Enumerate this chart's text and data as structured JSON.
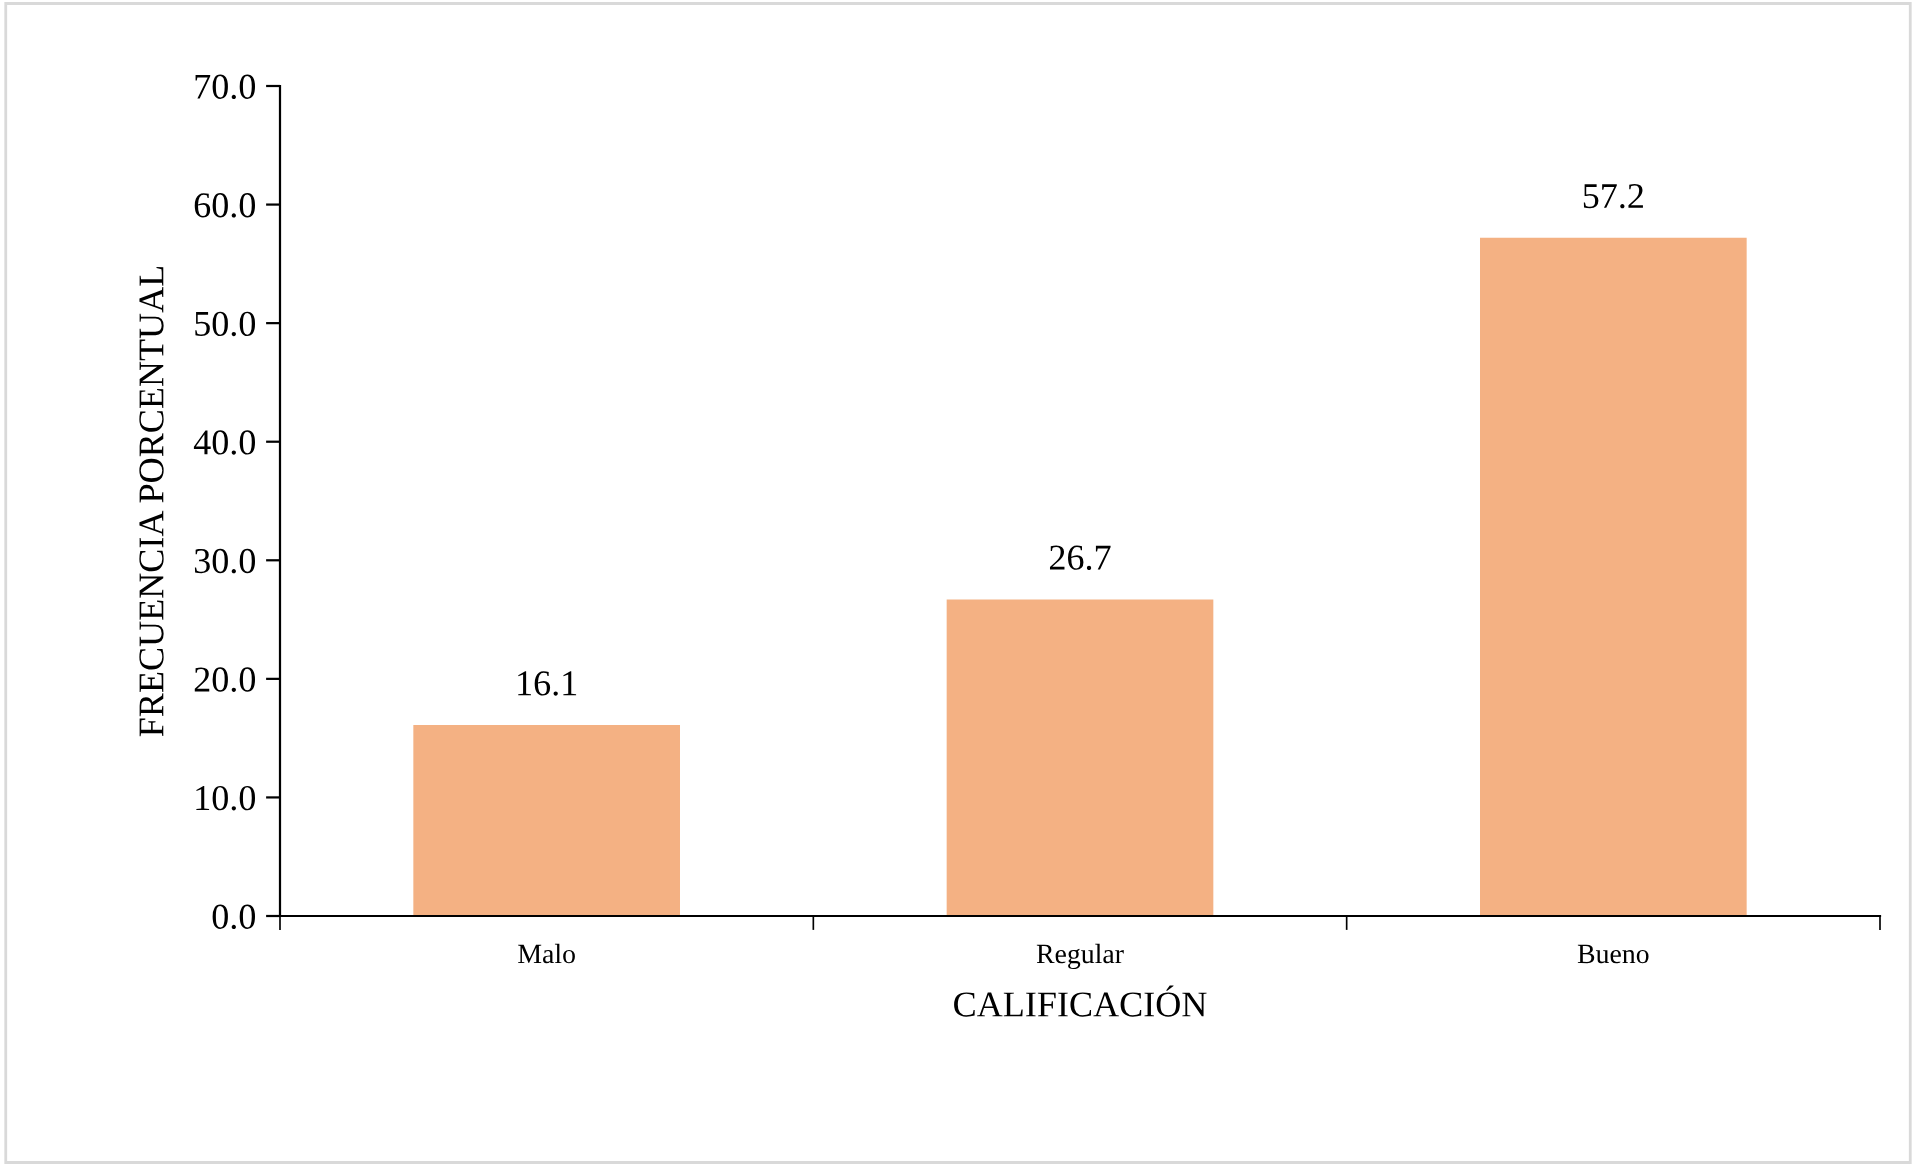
{
  "chart_data": {
    "type": "bar",
    "xlabel": "CALIFICACIÓN",
    "ylabel": "FRECUENCIA PORCENTUAL",
    "categories": [
      "Malo",
      "Regular",
      "Bueno"
    ],
    "values": [
      16.1,
      26.7,
      57.2
    ],
    "color": "#f4b183",
    "ylim": [
      0,
      70
    ],
    "yticks": [
      {
        "value": 0,
        "label": "0.0"
      },
      {
        "value": 10,
        "label": "10.0"
      },
      {
        "value": 20,
        "label": "20.0"
      },
      {
        "value": 30,
        "label": "30.0"
      },
      {
        "value": 40,
        "label": "40.0"
      },
      {
        "value": 50,
        "label": "50.0"
      },
      {
        "value": 60,
        "label": "60.0"
      },
      {
        "value": 70,
        "label": "70.0"
      }
    ],
    "data_labels": true,
    "grid": false,
    "legend": false
  }
}
